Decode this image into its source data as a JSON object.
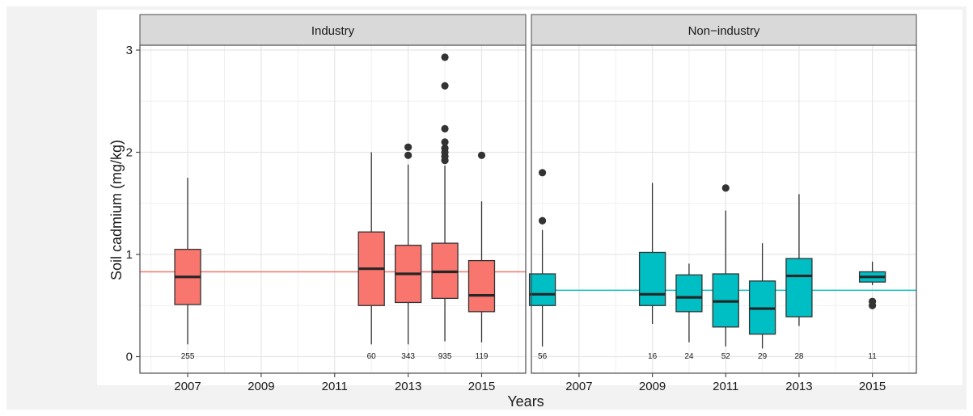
{
  "chart_data": {
    "type": "boxplot",
    "xlabel": "Years",
    "ylabel": "Soil cadmium (mg/kg)",
    "ylim": [
      -0.15,
      3.1
    ],
    "xlim": [
      2005.7,
      2016.2
    ],
    "y_ticks": [
      0,
      1,
      2,
      3
    ],
    "x_ticks": [
      2007,
      2009,
      2011,
      2013,
      2015
    ],
    "grid": true,
    "facets": [
      {
        "label": "Industry",
        "color": "#f8766d",
        "reference_line": 0.83,
        "boxes": [
          {
            "x": 2007,
            "whisker_low": 0.12,
            "q1": 0.51,
            "median": 0.78,
            "q3": 1.05,
            "whisker_high": 1.75,
            "outliers": [],
            "n": "255"
          },
          {
            "x": 2012,
            "whisker_low": 0.12,
            "q1": 0.5,
            "median": 0.86,
            "q3": 1.22,
            "whisker_high": 2.0,
            "outliers": [],
            "n": "60"
          },
          {
            "x": 2013,
            "whisker_low": 0.12,
            "q1": 0.53,
            "median": 0.81,
            "q3": 1.09,
            "whisker_high": 1.88,
            "outliers": [
              1.97,
              2.05
            ],
            "n": "343"
          },
          {
            "x": 2014,
            "whisker_low": 0.15,
            "q1": 0.57,
            "median": 0.83,
            "q3": 1.11,
            "whisker_high": 1.87,
            "outliers": [
              1.92,
              1.96,
              2.0,
              2.04,
              2.1,
              2.23,
              2.65,
              2.93
            ],
            "n": "935"
          },
          {
            "x": 2015,
            "whisker_low": 0.14,
            "q1": 0.44,
            "median": 0.6,
            "q3": 0.94,
            "whisker_high": 1.52,
            "outliers": [
              1.97
            ],
            "n": "119"
          }
        ]
      },
      {
        "label": "Non−industry",
        "color": "#00bfc4",
        "reference_line": 0.65,
        "boxes": [
          {
            "x": 2006,
            "whisker_low": 0.1,
            "q1": 0.5,
            "median": 0.61,
            "q3": 0.81,
            "whisker_high": 1.24,
            "outliers": [
              1.33,
              1.8
            ],
            "n": "56"
          },
          {
            "x": 2009,
            "whisker_low": 0.32,
            "q1": 0.5,
            "median": 0.61,
            "q3": 1.02,
            "whisker_high": 1.7,
            "outliers": [],
            "n": "16"
          },
          {
            "x": 2010,
            "whisker_low": 0.14,
            "q1": 0.44,
            "median": 0.58,
            "q3": 0.8,
            "whisker_high": 0.91,
            "outliers": [],
            "n": "24"
          },
          {
            "x": 2011,
            "whisker_low": 0.1,
            "q1": 0.29,
            "median": 0.54,
            "q3": 0.81,
            "whisker_high": 1.43,
            "outliers": [
              1.65
            ],
            "n": "52"
          },
          {
            "x": 2012,
            "whisker_low": 0.08,
            "q1": 0.22,
            "median": 0.47,
            "q3": 0.74,
            "whisker_high": 1.11,
            "outliers": [],
            "n": "29"
          },
          {
            "x": 2013,
            "whisker_low": 0.3,
            "q1": 0.39,
            "median": 0.79,
            "q3": 0.96,
            "whisker_high": 1.59,
            "outliers": [],
            "n": "28"
          },
          {
            "x": 2015,
            "whisker_low": 0.7,
            "q1": 0.73,
            "median": 0.78,
            "q3": 0.83,
            "whisker_high": 0.93,
            "outliers": [
              0.5,
              0.54
            ],
            "n": "11"
          }
        ]
      }
    ]
  }
}
